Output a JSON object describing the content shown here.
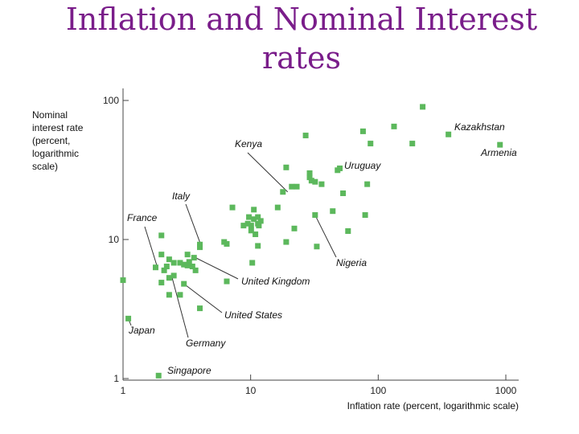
{
  "page": {
    "title_line1": "Inflation and Nominal Interest",
    "title_line2": "rates"
  },
  "chart_data": {
    "type": "scatter",
    "title": "Inflation and Nominal Interest rates",
    "xlabel": "Inflation rate (percent, logarithmic scale)",
    "ylabel_lines": [
      "Nominal",
      "interest rate",
      "(percent,",
      "logarithmic",
      "scale)"
    ],
    "x_scale": "log",
    "y_scale": "log",
    "xlim": [
      1,
      1000
    ],
    "ylim": [
      1,
      100
    ],
    "x_ticks": [
      1,
      10,
      100,
      1000
    ],
    "y_ticks": [
      1,
      10,
      100
    ],
    "x_tick_labels": [
      "1",
      "10",
      "100",
      "1000"
    ],
    "y_tick_labels": [
      "1",
      "10",
      "100"
    ],
    "grid": false,
    "marker_color": "#5cb85c",
    "points": [
      {
        "x": 1.0,
        "y": 5.1
      },
      {
        "x": 1.1,
        "y": 2.7
      },
      {
        "x": 1.9,
        "y": 1.05
      },
      {
        "x": 2.0,
        "y": 10.7
      },
      {
        "x": 1.8,
        "y": 6.3
      },
      {
        "x": 2.0,
        "y": 7.8
      },
      {
        "x": 2.1,
        "y": 6.0
      },
      {
        "x": 2.2,
        "y": 6.4
      },
      {
        "x": 2.3,
        "y": 7.2
      },
      {
        "x": 2.3,
        "y": 5.3
      },
      {
        "x": 2.0,
        "y": 4.9
      },
      {
        "x": 2.5,
        "y": 6.8
      },
      {
        "x": 2.5,
        "y": 5.5
      },
      {
        "x": 2.3,
        "y": 4.0
      },
      {
        "x": 2.8,
        "y": 6.8
      },
      {
        "x": 3.0,
        "y": 6.6
      },
      {
        "x": 3.2,
        "y": 6.5
      },
      {
        "x": 3.2,
        "y": 7.8
      },
      {
        "x": 3.3,
        "y": 6.9
      },
      {
        "x": 3.5,
        "y": 6.4
      },
      {
        "x": 3.6,
        "y": 7.4
      },
      {
        "x": 3.7,
        "y": 6.0
      },
      {
        "x": 2.8,
        "y": 4.0
      },
      {
        "x": 3.0,
        "y": 4.8
      },
      {
        "x": 4.0,
        "y": 3.2
      },
      {
        "x": 4.0,
        "y": 8.8
      },
      {
        "x": 4.0,
        "y": 9.2
      },
      {
        "x": 6.2,
        "y": 9.6
      },
      {
        "x": 6.5,
        "y": 9.3
      },
      {
        "x": 6.5,
        "y": 5.0
      },
      {
        "x": 7.2,
        "y": 17.0
      },
      {
        "x": 8.8,
        "y": 12.6
      },
      {
        "x": 9.5,
        "y": 13.0
      },
      {
        "x": 9.7,
        "y": 14.5
      },
      {
        "x": 10.1,
        "y": 12.6
      },
      {
        "x": 10.1,
        "y": 11.6
      },
      {
        "x": 10.3,
        "y": 6.8
      },
      {
        "x": 10.6,
        "y": 16.4
      },
      {
        "x": 10.6,
        "y": 14.0
      },
      {
        "x": 10.9,
        "y": 10.9
      },
      {
        "x": 11.4,
        "y": 13.0
      },
      {
        "x": 11.4,
        "y": 14.5
      },
      {
        "x": 11.6,
        "y": 12.6
      },
      {
        "x": 11.4,
        "y": 9.0
      },
      {
        "x": 12.0,
        "y": 13.6
      },
      {
        "x": 16.3,
        "y": 17.0
      },
      {
        "x": 17.9,
        "y": 22.0
      },
      {
        "x": 19.0,
        "y": 33.0
      },
      {
        "x": 19.0,
        "y": 9.6
      },
      {
        "x": 21.0,
        "y": 24.0
      },
      {
        "x": 22.0,
        "y": 12.0
      },
      {
        "x": 23.0,
        "y": 24.0
      },
      {
        "x": 27.0,
        "y": 56.0
      },
      {
        "x": 29.0,
        "y": 30.0
      },
      {
        "x": 29.0,
        "y": 28.0
      },
      {
        "x": 30.0,
        "y": 26.5
      },
      {
        "x": 32.0,
        "y": 26.0
      },
      {
        "x": 32.0,
        "y": 15.0
      },
      {
        "x": 33.0,
        "y": 8.9
      },
      {
        "x": 36.0,
        "y": 25.0
      },
      {
        "x": 44.0,
        "y": 16.0
      },
      {
        "x": 48.0,
        "y": 31.5
      },
      {
        "x": 50.0,
        "y": 32.5
      },
      {
        "x": 53.0,
        "y": 21.5
      },
      {
        "x": 58.0,
        "y": 11.5
      },
      {
        "x": 76.0,
        "y": 60.0
      },
      {
        "x": 79.0,
        "y": 15.0
      },
      {
        "x": 82.0,
        "y": 25.0
      },
      {
        "x": 87.0,
        "y": 49.0
      },
      {
        "x": 133.0,
        "y": 65.0
      },
      {
        "x": 185.0,
        "y": 49.0
      },
      {
        "x": 223.0,
        "y": 90.0
      },
      {
        "x": 355.0,
        "y": 57.0
      },
      {
        "x": 900.0,
        "y": 48.0
      }
    ],
    "annotations": [
      {
        "text": "Kazakhstan",
        "x": 355.0,
        "y": 57.0
      },
      {
        "text": "Armenia",
        "x": 900.0,
        "y": 48.0
      },
      {
        "text": "Kenya",
        "x": 19.5,
        "y": 22.0
      },
      {
        "text": "Uruguay",
        "x": 48.0,
        "y": 31.5
      },
      {
        "text": "Italy",
        "x": 4.1,
        "y": 9.0
      },
      {
        "text": "France",
        "x": 1.85,
        "y": 6.4
      },
      {
        "text": "United Kingdom",
        "x": 3.7,
        "y": 7.4
      },
      {
        "text": "Nigeria",
        "x": 32.0,
        "y": 15.0
      },
      {
        "text": "United States",
        "x": 3.0,
        "y": 4.8
      },
      {
        "text": "Japan",
        "x": 1.1,
        "y": 2.7
      },
      {
        "text": "Germany",
        "x": 2.4,
        "y": 5.5
      },
      {
        "text": "Singapore",
        "x": 1.9,
        "y": 1.05
      }
    ]
  }
}
